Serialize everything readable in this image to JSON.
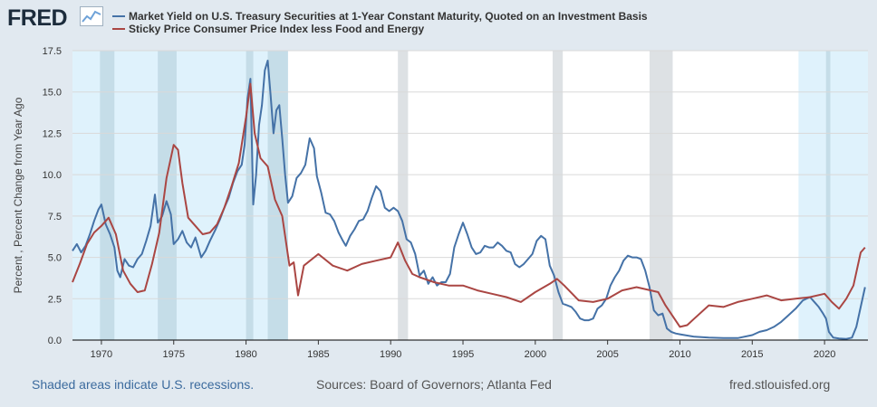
{
  "header": {
    "logo_text": "FRED",
    "logo_icon": "line-chart-icon"
  },
  "colors": {
    "background": "#e1e9f0",
    "plot_background": "#ffffff",
    "recession_shade": "#dde1e4",
    "highlight_shade": "#dff2fc",
    "series_1": "#4572a7",
    "series_2": "#aa4643"
  },
  "footer": {
    "note": "Shaded areas indicate U.S. recessions.",
    "sources": "Sources: Board of Governors; Atlanta Fed",
    "url": "fred.stlouisfed.org"
  },
  "chart_data": {
    "type": "line",
    "title": "",
    "xlabel": "",
    "ylabel": "Percent , Percent Change from Year Ago",
    "xlim": [
      1968,
      2023
    ],
    "ylim": [
      0,
      17.5
    ],
    "yticks": [
      0,
      2.5,
      5,
      7.5,
      10,
      12.5,
      15,
      17.5
    ],
    "ytick_labels": [
      "0.0",
      "2.5",
      "5.0",
      "7.5",
      "10.0",
      "12.5",
      "15.0",
      "17.5"
    ],
    "xticks": [
      1970,
      1975,
      1980,
      1985,
      1990,
      1995,
      2000,
      2005,
      2010,
      2015,
      2020
    ],
    "xtick_labels": [
      "1970",
      "1975",
      "1980",
      "1985",
      "1990",
      "1995",
      "2000",
      "2005",
      "2010",
      "2015",
      "2020"
    ],
    "grid": "horizontal",
    "legend": "top-left",
    "recessions": [
      [
        1969.9,
        1970.9
      ],
      [
        1973.9,
        1975.2
      ],
      [
        1980.0,
        1980.5
      ],
      [
        1981.5,
        1982.9
      ],
      [
        1990.5,
        1991.2
      ],
      [
        2001.2,
        2001.9
      ],
      [
        2007.9,
        2009.5
      ],
      [
        2020.1,
        2020.4
      ]
    ],
    "highlight_ranges": [
      [
        1968,
        1982.9
      ],
      [
        2018.2,
        2023
      ]
    ],
    "series": [
      {
        "name": "Market Yield on U.S. Treasury Securities at 1-Year Constant Maturity, Quoted on an Investment Basis",
        "color": "#4572a7",
        "x": [
          1968.0,
          1968.3,
          1968.6,
          1968.9,
          1969.2,
          1969.5,
          1969.8,
          1970.0,
          1970.3,
          1970.6,
          1970.9,
          1971.1,
          1971.3,
          1971.6,
          1971.9,
          1972.2,
          1972.5,
          1972.8,
          1973.1,
          1973.4,
          1973.7,
          1973.9,
          1974.2,
          1974.5,
          1974.8,
          1975.0,
          1975.3,
          1975.6,
          1975.9,
          1976.2,
          1976.5,
          1976.9,
          1977.2,
          1977.5,
          1977.9,
          1978.2,
          1978.5,
          1978.8,
          1979.1,
          1979.4,
          1979.7,
          1979.9,
          1980.1,
          1980.3,
          1980.5,
          1980.7,
          1980.9,
          1981.1,
          1981.3,
          1981.5,
          1981.7,
          1981.9,
          1982.1,
          1982.3,
          1982.5,
          1982.7,
          1982.9,
          1983.2,
          1983.5,
          1983.8,
          1984.1,
          1984.4,
          1984.7,
          1984.9,
          1985.2,
          1985.5,
          1985.8,
          1986.1,
          1986.4,
          1986.7,
          1986.9,
          1987.2,
          1987.5,
          1987.8,
          1988.1,
          1988.4,
          1988.7,
          1989.0,
          1989.3,
          1989.6,
          1989.9,
          1990.2,
          1990.5,
          1990.8,
          1991.1,
          1991.4,
          1991.7,
          1992.0,
          1992.3,
          1992.6,
          1992.9,
          1993.2,
          1993.5,
          1993.8,
          1994.1,
          1994.4,
          1994.7,
          1995.0,
          1995.3,
          1995.6,
          1995.9,
          1996.2,
          1996.5,
          1996.8,
          1997.1,
          1997.4,
          1997.7,
          1998.0,
          1998.3,
          1998.6,
          1998.9,
          1999.2,
          1999.5,
          1999.8,
          2000.1,
          2000.4,
          2000.7,
          2001.0,
          2001.3,
          2001.6,
          2001.9,
          2002.2,
          2002.5,
          2002.8,
          2003.1,
          2003.4,
          2003.7,
          2004.0,
          2004.3,
          2004.6,
          2004.9,
          2005.2,
          2005.5,
          2005.8,
          2006.1,
          2006.4,
          2006.7,
          2007.0,
          2007.3,
          2007.6,
          2007.9,
          2008.2,
          2008.5,
          2008.8,
          2009.1,
          2009.4,
          2009.7,
          2010.0,
          2011.0,
          2012.0,
          2013.0,
          2014.0,
          2015.0,
          2015.5,
          2016.0,
          2016.5,
          2017.0,
          2017.5,
          2018.0,
          2018.5,
          2019.0,
          2019.3,
          2019.6,
          2019.9,
          2020.1,
          2020.3,
          2020.6,
          2021.0,
          2021.5,
          2021.9,
          2022.2,
          2022.5,
          2022.8
        ],
        "values": [
          5.4,
          5.8,
          5.3,
          5.7,
          6.4,
          7.2,
          7.9,
          8.2,
          7.0,
          6.4,
          5.6,
          4.2,
          3.8,
          4.9,
          4.5,
          4.4,
          4.9,
          5.2,
          6.0,
          6.9,
          8.8,
          7.1,
          7.5,
          8.4,
          7.6,
          5.8,
          6.1,
          6.6,
          5.9,
          5.6,
          6.2,
          5.0,
          5.4,
          6.0,
          6.7,
          7.3,
          8.0,
          8.6,
          9.5,
          10.2,
          10.6,
          11.8,
          14.6,
          15.8,
          8.2,
          10.0,
          13.0,
          14.2,
          16.3,
          16.9,
          14.8,
          12.5,
          13.9,
          14.2,
          12.2,
          10.0,
          8.3,
          8.7,
          9.8,
          10.1,
          10.6,
          12.2,
          11.6,
          9.9,
          8.9,
          7.7,
          7.6,
          7.2,
          6.5,
          6.0,
          5.7,
          6.3,
          6.7,
          7.2,
          7.3,
          7.8,
          8.6,
          9.3,
          9.0,
          8.0,
          7.8,
          8.0,
          7.8,
          7.2,
          6.1,
          5.9,
          5.2,
          3.9,
          4.2,
          3.4,
          3.8,
          3.3,
          3.5,
          3.5,
          4.0,
          5.6,
          6.4,
          7.1,
          6.4,
          5.6,
          5.2,
          5.3,
          5.7,
          5.6,
          5.6,
          5.9,
          5.7,
          5.4,
          5.3,
          4.6,
          4.4,
          4.6,
          4.9,
          5.2,
          6.0,
          6.3,
          6.1,
          4.5,
          3.9,
          2.9,
          2.2,
          2.1,
          2.0,
          1.7,
          1.3,
          1.2,
          1.2,
          1.3,
          1.9,
          2.1,
          2.5,
          3.3,
          3.8,
          4.2,
          4.8,
          5.1,
          5.0,
          5.0,
          4.9,
          4.2,
          3.2,
          1.8,
          1.5,
          1.6,
          0.7,
          0.5,
          0.4,
          0.35,
          0.2,
          0.15,
          0.12,
          0.12,
          0.3,
          0.5,
          0.6,
          0.8,
          1.1,
          1.5,
          1.9,
          2.4,
          2.6,
          2.3,
          2.0,
          1.6,
          1.3,
          0.5,
          0.15,
          0.1,
          0.07,
          0.15,
          0.8,
          2.0,
          3.2
        ]
      },
      {
        "name": "Sticky Price Consumer Price Index less Food and Energy",
        "color": "#aa4643",
        "x": [
          1968.0,
          1968.5,
          1969.0,
          1969.5,
          1970.0,
          1970.5,
          1971.0,
          1971.5,
          1972.0,
          1972.5,
          1973.0,
          1973.5,
          1974.0,
          1974.5,
          1975.0,
          1975.3,
          1975.6,
          1976.0,
          1976.5,
          1977.0,
          1977.5,
          1978.0,
          1978.5,
          1979.0,
          1979.5,
          1980.0,
          1980.3,
          1980.6,
          1981.0,
          1981.5,
          1982.0,
          1982.5,
          1983.0,
          1983.3,
          1983.6,
          1984.0,
          1985.0,
          1986.0,
          1987.0,
          1988.0,
          1989.0,
          1990.0,
          1990.5,
          1991.0,
          1991.5,
          1992.0,
          1993.0,
          1994.0,
          1995.0,
          1996.0,
          1997.0,
          1998.0,
          1999.0,
          2000.0,
          2001.0,
          2001.5,
          2002.0,
          2003.0,
          2004.0,
          2005.0,
          2006.0,
          2007.0,
          2008.0,
          2008.5,
          2009.0,
          2010.0,
          2010.5,
          2011.0,
          2012.0,
          2013.0,
          2014.0,
          2015.0,
          2016.0,
          2017.0,
          2018.0,
          2019.0,
          2020.0,
          2020.5,
          2021.0,
          2021.5,
          2022.0,
          2022.5,
          2022.8
        ],
        "values": [
          3.5,
          4.6,
          5.8,
          6.5,
          6.9,
          7.4,
          6.4,
          4.2,
          3.4,
          2.9,
          3.0,
          4.6,
          6.5,
          9.8,
          11.8,
          11.5,
          9.5,
          7.4,
          6.9,
          6.4,
          6.5,
          7.0,
          8.0,
          9.3,
          10.7,
          13.5,
          15.5,
          12.5,
          11.0,
          10.5,
          8.5,
          7.5,
          4.5,
          4.7,
          2.7,
          4.5,
          5.2,
          4.5,
          4.2,
          4.6,
          4.8,
          5.0,
          5.9,
          4.8,
          4.0,
          3.8,
          3.5,
          3.3,
          3.3,
          3.0,
          2.8,
          2.6,
          2.3,
          2.9,
          3.4,
          3.7,
          3.3,
          2.4,
          2.3,
          2.5,
          3.0,
          3.2,
          3.0,
          2.9,
          2.1,
          0.8,
          0.9,
          1.3,
          2.1,
          2.0,
          2.3,
          2.5,
          2.7,
          2.4,
          2.5,
          2.6,
          2.8,
          2.3,
          1.9,
          2.5,
          3.3,
          5.3,
          5.6
        ]
      }
    ]
  }
}
